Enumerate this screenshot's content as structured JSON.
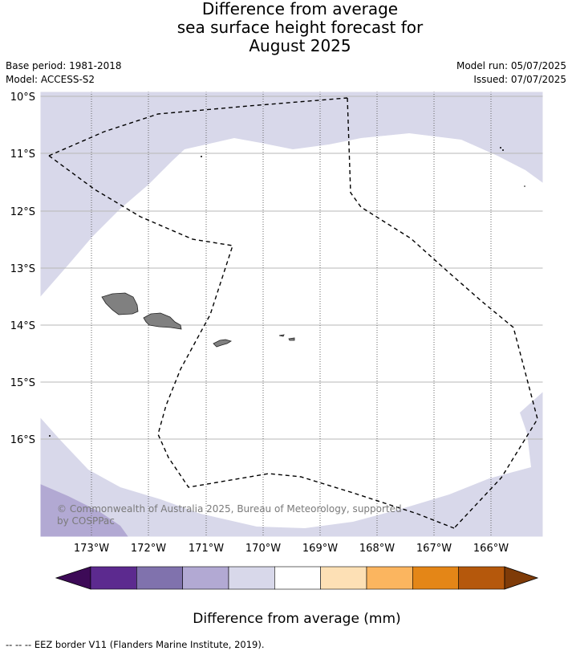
{
  "title": {
    "line1": "Difference from average",
    "line2": "sea surface height forecast for",
    "line3": "August 2025"
  },
  "info": {
    "base_period": "Base period: 1981-2018",
    "model": "Model: ACCESS-S2",
    "model_run": "Model run: 05/07/2025",
    "issued": "Issued: 07/07/2025"
  },
  "map": {
    "lat_labels": [
      "10°S",
      "11°S",
      "12°S",
      "13°S",
      "14°S",
      "15°S",
      "16°S"
    ],
    "lon_labels": [
      "173°W",
      "172°W",
      "171°W",
      "170°W",
      "169°W",
      "168°W",
      "167°W",
      "166°W"
    ],
    "copyright_line1": "© Commonwealth of Australia 2025, Bureau of Meteorology, supported",
    "copyright_line2": "by COSPPac"
  },
  "colorbar": {
    "ticks": [
      "-300",
      "-200",
      "-100",
      "-60",
      "-30",
      "30",
      "60",
      "100",
      "200",
      "300"
    ],
    "colors": [
      "#3d0a57",
      "#5c2a8f",
      "#8072ad",
      "#b2a9d3",
      "#d8d8ea",
      "#ffffff",
      "#fde0b5",
      "#fbb55f",
      "#e48617",
      "#b5580c",
      "#7f3b08"
    ],
    "label": "Difference from average (mm)"
  },
  "footer": "--  --  -- EEZ border V11 (Flanders Marine Institute, 2019)."
}
